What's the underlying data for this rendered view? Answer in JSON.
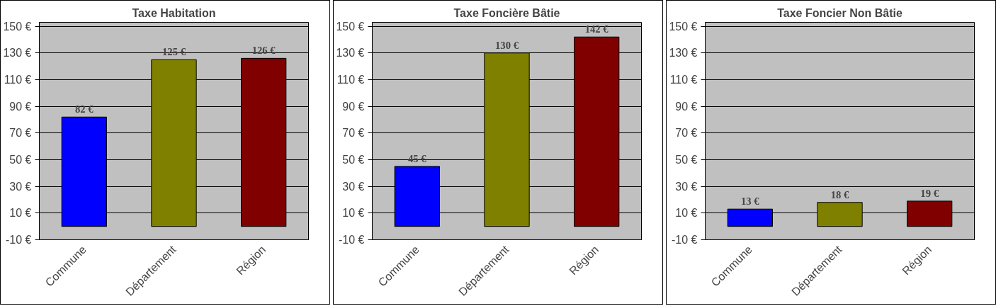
{
  "chart_data": [
    {
      "type": "bar",
      "title": "Taxe Habitation",
      "categories": [
        "Commune",
        "Département",
        "Région"
      ],
      "values": [
        82,
        125,
        126
      ],
      "colors": [
        "#0000ff",
        "#808000",
        "#800000"
      ],
      "value_labels": [
        "82 €",
        "125 €",
        "126 €"
      ],
      "ylim": [
        -10,
        153
      ],
      "yticks": [
        {
          "value": -10,
          "label": "-10 €"
        },
        {
          "value": 10,
          "label": "10 €"
        },
        {
          "value": 30,
          "label": "30 €"
        },
        {
          "value": 50,
          "label": "50 €"
        },
        {
          "value": 70,
          "label": "70 €"
        },
        {
          "value": 90,
          "label": "90 €"
        },
        {
          "value": 110,
          "label": "110 €"
        },
        {
          "value": 130,
          "label": "130 €"
        },
        {
          "value": 150,
          "label": "150 €"
        }
      ],
      "grid": "y"
    },
    {
      "type": "bar",
      "title": "Taxe Foncière Bâtie",
      "categories": [
        "Commune",
        "Département",
        "Région"
      ],
      "values": [
        45,
        130,
        142
      ],
      "colors": [
        "#0000ff",
        "#808000",
        "#800000"
      ],
      "value_labels": [
        "45 €",
        "130 €",
        "142 €"
      ],
      "ylim": [
        -10,
        153
      ],
      "yticks": [
        {
          "value": -10,
          "label": "-10 €"
        },
        {
          "value": 10,
          "label": "10 €"
        },
        {
          "value": 30,
          "label": "30 €"
        },
        {
          "value": 50,
          "label": "50 €"
        },
        {
          "value": 70,
          "label": "70 €"
        },
        {
          "value": 90,
          "label": "90 €"
        },
        {
          "value": 110,
          "label": "110 €"
        },
        {
          "value": 130,
          "label": "130 €"
        },
        {
          "value": 150,
          "label": "150 €"
        }
      ],
      "grid": "y"
    },
    {
      "type": "bar",
      "title": "Taxe Foncier Non Bâtie",
      "categories": [
        "Commune",
        "Département",
        "Région"
      ],
      "values": [
        13,
        18,
        19
      ],
      "colors": [
        "#0000ff",
        "#808000",
        "#800000"
      ],
      "value_labels": [
        "13 €",
        "18 €",
        "19 €"
      ],
      "ylim": [
        -10,
        153
      ],
      "yticks": [
        {
          "value": -10,
          "label": "-10 €"
        },
        {
          "value": 10,
          "label": "10 €"
        },
        {
          "value": 30,
          "label": "30 €"
        },
        {
          "value": 50,
          "label": "50 €"
        },
        {
          "value": 70,
          "label": "70 €"
        },
        {
          "value": 90,
          "label": "90 €"
        },
        {
          "value": 110,
          "label": "110 €"
        },
        {
          "value": 130,
          "label": "130 €"
        },
        {
          "value": 150,
          "label": "150 €"
        }
      ],
      "grid": "y"
    }
  ]
}
